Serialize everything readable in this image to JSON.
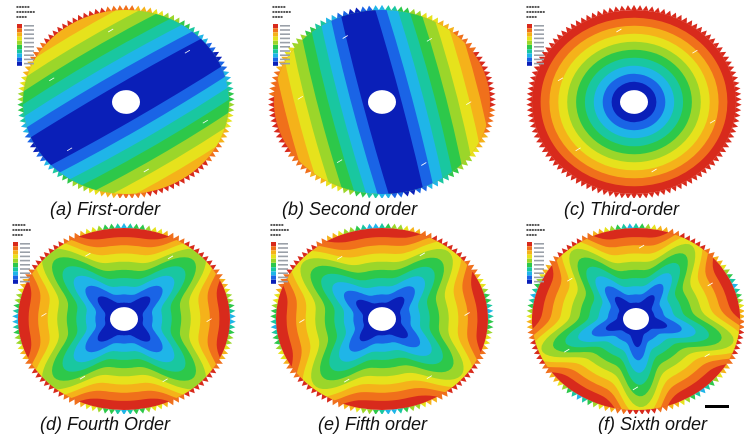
{
  "figure": {
    "panels": [
      {
        "caption": "(a) First-order",
        "mode": "first",
        "angle_deg": 60,
        "inner_color": "#0a1fb8"
      },
      {
        "caption": "(b) Second order",
        "mode": "second",
        "angle_deg": -15,
        "inner_color": "#0a1fb8"
      },
      {
        "caption": "(c) Third-order",
        "mode": "third",
        "angle_deg": 0,
        "inner_color": "#0a1fb8"
      },
      {
        "caption": "(d) Fourth Order",
        "mode": "fourth",
        "angle_deg": 45,
        "inner_color": "#0a1fb8"
      },
      {
        "caption": "(e) Fifth order",
        "mode": "fifth",
        "angle_deg": 40,
        "inner_color": "#0a1fb8"
      },
      {
        "caption": "(f) Sixth order",
        "mode": "sixth",
        "angle_deg": 15,
        "inner_color": "#0a1fb8"
      }
    ],
    "colormap": [
      "#0a1fb8",
      "#1a64e6",
      "#1fb5e8",
      "#19c7a0",
      "#2dc84a",
      "#9bd62a",
      "#e6e21c",
      "#f5b21a",
      "#f0701b",
      "#d82a1c"
    ],
    "background": "#ffffff",
    "gear_tooth_color": "#c8d2e6"
  }
}
